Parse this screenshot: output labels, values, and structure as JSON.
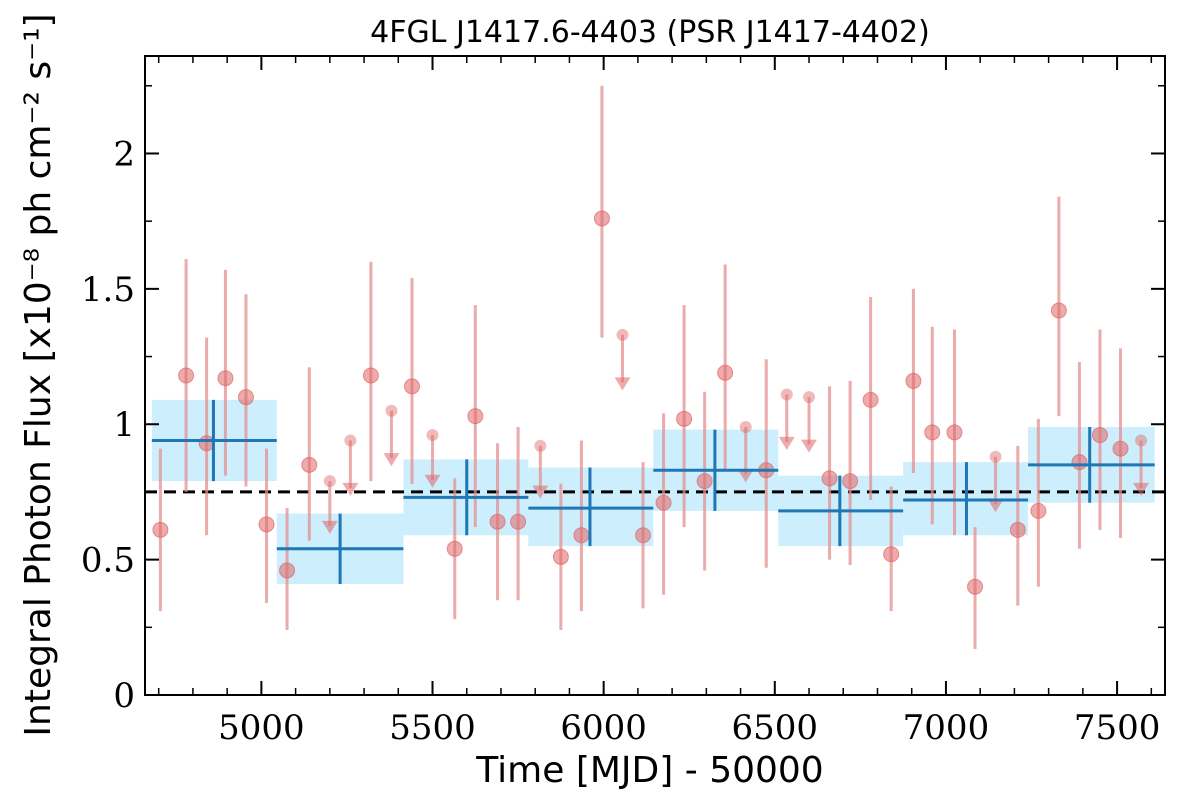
{
  "chart_data": {
    "type": "scatter",
    "title": "4FGL J1417.6-4403 (PSR J1417-4402)",
    "xlabel": "Time [MJD] - 50000",
    "ylabel": "Integral Photon Flux [x10⁻⁸ ph cm⁻² s⁻¹]",
    "xlim": [
      4660,
      7640
    ],
    "ylim": [
      0,
      2.36
    ],
    "xticks": [
      5000,
      5500,
      6000,
      6500,
      7000,
      7500
    ],
    "xtick_labels": [
      "5000",
      "5500",
      "6000",
      "6500",
      "7000",
      "7500"
    ],
    "yticks": [
      0,
      0.5,
      1,
      1.5,
      2
    ],
    "ytick_labels": [
      "0",
      "0.5",
      "1",
      "1.5",
      "2"
    ],
    "reference_line": {
      "y": 0.75,
      "style": "dashed",
      "color": "#000000"
    },
    "colors": {
      "short_points": "#e06666",
      "short_errorbars": "#e48f8f",
      "long_bins": "#1f77b4",
      "long_bin_band": "#cdeefc"
    },
    "series": [
      {
        "points": [
          {
            "x": 4705,
            "y": 0.61,
            "ylo": 0.31,
            "yhi": 0.91
          },
          {
            "x": 4780,
            "y": 1.18,
            "ylo": 0.75,
            "yhi": 1.61
          },
          {
            "x": 4840,
            "y": 0.93,
            "ylo": 0.59,
            "yhi": 1.32
          },
          {
            "x": 4895,
            "y": 1.17,
            "ylo": 0.81,
            "yhi": 1.57
          },
          {
            "x": 4955,
            "y": 1.1,
            "ylo": 0.77,
            "yhi": 1.48
          },
          {
            "x": 5015,
            "y": 0.63,
            "ylo": 0.34,
            "yhi": 0.91
          },
          {
            "x": 5075,
            "y": 0.46,
            "ylo": 0.24,
            "yhi": 0.69
          },
          {
            "x": 5140,
            "y": 0.85,
            "ylo": 0.57,
            "yhi": 1.21
          },
          {
            "x": 5320,
            "y": 1.18,
            "ylo": 0.79,
            "yhi": 1.6
          },
          {
            "x": 5440,
            "y": 1.14,
            "ylo": 0.78,
            "yhi": 1.54
          },
          {
            "x": 5565,
            "y": 0.54,
            "ylo": 0.28,
            "yhi": 0.8
          },
          {
            "x": 5625,
            "y": 1.03,
            "ylo": 0.62,
            "yhi": 1.44
          },
          {
            "x": 5690,
            "y": 0.64,
            "ylo": 0.35,
            "yhi": 0.93
          },
          {
            "x": 5750,
            "y": 0.64,
            "ylo": 0.35,
            "yhi": 0.99
          },
          {
            "x": 5875,
            "y": 0.51,
            "ylo": 0.24,
            "yhi": 0.78
          },
          {
            "x": 5935,
            "y": 0.59,
            "ylo": 0.31,
            "yhi": 0.94
          },
          {
            "x": 5995,
            "y": 1.76,
            "ylo": 1.32,
            "yhi": 2.25
          },
          {
            "x": 6115,
            "y": 0.59,
            "ylo": 0.32,
            "yhi": 0.86
          },
          {
            "x": 6175,
            "y": 0.71,
            "ylo": 0.37,
            "yhi": 1.04
          },
          {
            "x": 6235,
            "y": 1.02,
            "ylo": 0.62,
            "yhi": 1.44
          },
          {
            "x": 6295,
            "y": 0.79,
            "ylo": 0.46,
            "yhi": 1.12
          },
          {
            "x": 6355,
            "y": 1.19,
            "ylo": 0.83,
            "yhi": 1.59
          },
          {
            "x": 6475,
            "y": 0.83,
            "ylo": 0.47,
            "yhi": 1.24
          },
          {
            "x": 6660,
            "y": 0.8,
            "ylo": 0.5,
            "yhi": 1.14
          },
          {
            "x": 6720,
            "y": 0.79,
            "ylo": 0.48,
            "yhi": 1.16
          },
          {
            "x": 6780,
            "y": 1.09,
            "ylo": 0.72,
            "yhi": 1.47
          },
          {
            "x": 6840,
            "y": 0.52,
            "ylo": 0.31,
            "yhi": 0.77
          },
          {
            "x": 6905,
            "y": 1.16,
            "ylo": 0.82,
            "yhi": 1.5
          },
          {
            "x": 6960,
            "y": 0.97,
            "ylo": 0.63,
            "yhi": 1.36
          },
          {
            "x": 7025,
            "y": 0.97,
            "ylo": 0.59,
            "yhi": 1.35
          },
          {
            "x": 7085,
            "y": 0.4,
            "ylo": 0.17,
            "yhi": 0.62
          },
          {
            "x": 7210,
            "y": 0.61,
            "ylo": 0.33,
            "yhi": 0.92
          },
          {
            "x": 7270,
            "y": 0.68,
            "ylo": 0.4,
            "yhi": 1.02
          },
          {
            "x": 7330,
            "y": 1.42,
            "ylo": 1.03,
            "yhi": 1.84
          },
          {
            "x": 7390,
            "y": 0.86,
            "ylo": 0.54,
            "yhi": 1.23
          },
          {
            "x": 7450,
            "y": 0.96,
            "ylo": 0.61,
            "yhi": 1.35
          },
          {
            "x": 7510,
            "y": 0.91,
            "ylo": 0.58,
            "yhi": 1.28
          }
        ]
      },
      {
        "upper_limits": [
          {
            "x": 5200,
            "y": 0.79,
            "arrow_to": 0.61
          },
          {
            "x": 5260,
            "y": 0.94,
            "arrow_to": 0.75
          },
          {
            "x": 5380,
            "y": 1.05,
            "arrow_to": 0.86
          },
          {
            "x": 5500,
            "y": 0.96,
            "arrow_to": 0.78
          },
          {
            "x": 5815,
            "y": 0.92,
            "arrow_to": 0.74
          },
          {
            "x": 6055,
            "y": 1.33,
            "arrow_to": 1.14
          },
          {
            "x": 6415,
            "y": 0.99,
            "arrow_to": 0.8
          },
          {
            "x": 6535,
            "y": 1.11,
            "arrow_to": 0.92
          },
          {
            "x": 6600,
            "y": 1.1,
            "arrow_to": 0.91
          },
          {
            "x": 7145,
            "y": 0.88,
            "arrow_to": 0.69
          },
          {
            "x": 7570,
            "y": 0.94,
            "arrow_to": 0.75
          }
        ]
      },
      {
        "bins": [
          {
            "x": 4860,
            "xlo": 4680,
            "xhi": 5045,
            "y": 0.94,
            "ylo": 0.79,
            "yhi": 1.09
          },
          {
            "x": 5230,
            "xlo": 5045,
            "xhi": 5415,
            "y": 0.54,
            "ylo": 0.41,
            "yhi": 0.67
          },
          {
            "x": 5600,
            "xlo": 5415,
            "xhi": 5780,
            "y": 0.73,
            "ylo": 0.59,
            "yhi": 0.87
          },
          {
            "x": 5960,
            "xlo": 5780,
            "xhi": 6145,
            "y": 0.69,
            "ylo": 0.55,
            "yhi": 0.84
          },
          {
            "x": 6325,
            "xlo": 6145,
            "xhi": 6510,
            "y": 0.83,
            "ylo": 0.68,
            "yhi": 0.98
          },
          {
            "x": 6690,
            "xlo": 6510,
            "xhi": 6875,
            "y": 0.68,
            "ylo": 0.55,
            "yhi": 0.81
          },
          {
            "x": 7060,
            "xlo": 6875,
            "xhi": 7240,
            "y": 0.72,
            "ylo": 0.59,
            "yhi": 0.86
          },
          {
            "x": 7420,
            "xlo": 7240,
            "xhi": 7610,
            "y": 0.85,
            "ylo": 0.71,
            "yhi": 0.99
          }
        ]
      }
    ]
  }
}
